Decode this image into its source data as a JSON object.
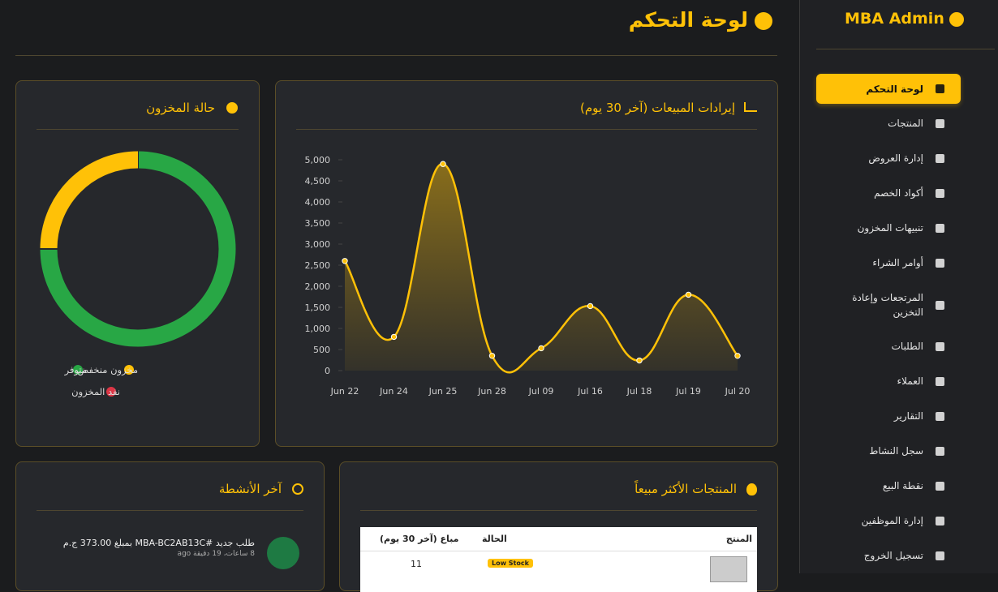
{
  "sidebar": {
    "brand": "MBA Admin",
    "items": [
      "لوحة التحكم",
      "المنتجات",
      "إدارة العروض",
      "أكواد الخصم",
      "تنبيهات المخزون",
      "أوامر الشراء",
      "المرتجعات وإعادة التخزين",
      "الطلبات",
      "العملاء",
      "التقارير",
      "سجل النشاط",
      "نقطة البيع",
      "إدارة الموظفين",
      "تسجيل الخروج"
    ]
  },
  "header": {
    "title": "لوحة التحكم"
  },
  "chart_data": [
    {
      "type": "line",
      "title": "إيرادات المبيعات (آخر 30 يوم)",
      "categories": [
        "Jun 22",
        "Jun 24",
        "Jun 25",
        "Jun 28",
        "Jul 09",
        "Jul 16",
        "Jul 18",
        "Jul 19",
        "Jul 20"
      ],
      "values": [
        2600,
        800,
        4900,
        350,
        530,
        1530,
        240,
        1800,
        350
      ],
      "color": "#ffc107",
      "ylim": [
        0,
        5000
      ],
      "yticks": [
        0,
        500,
        {
          "value": 1000,
          "label": "1,000"
        },
        {
          "value": 1500,
          "label": "1,500"
        },
        {
          "value": 2000,
          "label": "2,000"
        },
        {
          "value": 2500,
          "label": "2,500"
        },
        {
          "value": 3000,
          "label": "3,000"
        },
        {
          "value": 3500,
          "label": "3,500"
        },
        {
          "value": 4000,
          "label": "4,000"
        },
        {
          "value": 4500,
          "label": "4,500"
        },
        {
          "value": 5000,
          "label": "5,000"
        }
      ],
      "grid": false
    },
    {
      "type": "doughnut",
      "title": "حالة المخزون",
      "categories": [
        "متوفر",
        "مخزون منخفض",
        "نفد المخزون"
      ],
      "values": [
        75,
        25,
        0
      ],
      "colors": [
        "#28a745",
        "#ffc107",
        "#dc3545"
      ]
    }
  ],
  "activity": {
    "title": "آخر الأنشطة",
    "items": [
      {
        "text": "طلب جديد #MBA-BC2AB13C بمبلغ 373.00 ج.م",
        "time": "8 ساعات، 19 دقيقة ago"
      }
    ]
  },
  "top_products": {
    "title": "المنتجات الأكثر مبيعاً",
    "columns": [
      "المنتج",
      "الحالة",
      "مباع (آخر 30 يوم)"
    ],
    "rows": [
      {
        "status": "Low Stock",
        "sold": 11
      }
    ]
  }
}
